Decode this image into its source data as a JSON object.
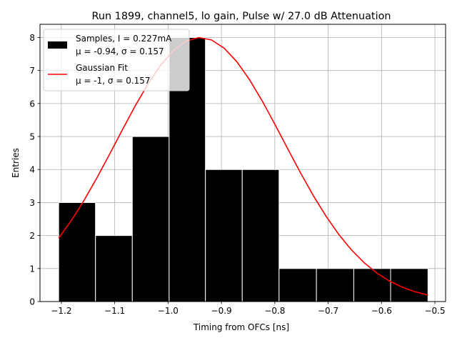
{
  "chart_data": {
    "type": "histogram",
    "title": "Run 1899, channel5, lo gain, Pulse w/ 27.0 dB Attenuation",
    "xlabel": "Timing from OFCs [ns]",
    "ylabel": "Entries",
    "xlim": [
      -1.24,
      -0.48
    ],
    "ylim": [
      0,
      8.4
    ],
    "xticks": [
      -1.2,
      -1.1,
      -1.0,
      -0.9,
      -0.8,
      -0.7,
      -0.6,
      -0.5
    ],
    "xtick_labels": [
      "−1.2",
      "−1.1",
      "−1.0",
      "−0.9",
      "−0.8",
      "−0.7",
      "−0.6",
      "−0.5"
    ],
    "yticks": [
      0,
      1,
      2,
      3,
      4,
      5,
      6,
      7,
      8
    ],
    "ytick_labels": [
      "0",
      "1",
      "2",
      "3",
      "4",
      "5",
      "6",
      "7",
      "8"
    ],
    "grid": true,
    "bars": [
      {
        "x0": -1.205,
        "x1": -1.136,
        "value": 3
      },
      {
        "x0": -1.136,
        "x1": -1.067,
        "value": 2
      },
      {
        "x0": -1.067,
        "x1": -0.998,
        "value": 5
      },
      {
        "x0": -0.998,
        "x1": -0.93,
        "value": 8
      },
      {
        "x0": -0.93,
        "x1": -0.861,
        "value": 4
      },
      {
        "x0": -0.861,
        "x1": -0.792,
        "value": 4
      },
      {
        "x0": -0.792,
        "x1": -0.722,
        "value": 1
      },
      {
        "x0": -0.722,
        "x1": -0.652,
        "value": 1
      },
      {
        "x0": -0.652,
        "x1": -0.583,
        "value": 1
      },
      {
        "x0": -0.583,
        "x1": -0.513,
        "value": 1
      }
    ],
    "fit": {
      "name": "Gaussian Fit",
      "mu": -0.94,
      "sigma": 0.157,
      "amplitude": 8.0,
      "x_range": [
        -1.205,
        -0.513
      ]
    },
    "legend": {
      "position": "top-left",
      "entries": [
        {
          "series": "histogram",
          "line1": "Samples, I = 0.227mA",
          "line2": "μ = -0.94, σ = 0.157",
          "color": "#000000"
        },
        {
          "series": "fit",
          "line1": "Gaussian Fit",
          "line2": "μ = -1, σ = 0.157",
          "color": "#ff0000"
        }
      ]
    },
    "colors": {
      "bar": "#000000",
      "bar_edge": "#ffffff",
      "fit": "#ff0000",
      "grid": "#b0b0b0"
    }
  }
}
